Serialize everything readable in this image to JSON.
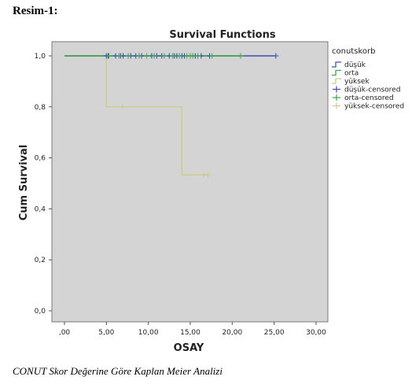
{
  "heading": "Resim-1:",
  "caption": "CONUT Skor Değerine Göre Kaplan Meier Analizi",
  "colors": {
    "plot_bg": "#d4d4d4",
    "dusuk": "#3c4fb4",
    "orta": "#3ea84c",
    "yuksek": "#cfcc8a"
  },
  "chart_data": {
    "type": "line",
    "title": "Survival Functions",
    "xlabel": "OSAY",
    "ylabel": "Cum Survival",
    "xlim": [
      0,
      30
    ],
    "ylim": [
      0,
      1
    ],
    "x_ticks": [
      0,
      5,
      10,
      15,
      20,
      25,
      30
    ],
    "x_tick_labels": [
      ",00",
      "5,00",
      "10,00",
      "15,00",
      "20,00",
      "25,00",
      "30,00"
    ],
    "y_ticks": [
      0,
      0.2,
      0.4,
      0.6,
      0.8,
      1.0
    ],
    "y_tick_labels": [
      "0,0",
      "0,2",
      "0,4",
      "0,6",
      "0,8",
      "1,0"
    ],
    "grid": false,
    "legend_title": "conutskorb",
    "legend_position": "right",
    "legend": [
      "düşük",
      "orta",
      "yüksek",
      "düşük-censored",
      "orta-censored",
      "yüksek-censored"
    ],
    "series": [
      {
        "name": "düşük",
        "color": "#3c4fb4",
        "steps": [
          [
            0,
            1.0
          ],
          [
            25.2,
            1.0
          ]
        ],
        "censored": [
          [
            5.0,
            1.0
          ],
          [
            5.2,
            1.0
          ],
          [
            6.1,
            1.0
          ],
          [
            6.7,
            1.0
          ],
          [
            7.0,
            1.0
          ],
          [
            7.9,
            1.0
          ],
          [
            8.5,
            1.0
          ],
          [
            9.2,
            1.0
          ],
          [
            10.4,
            1.0
          ],
          [
            11.0,
            1.0
          ],
          [
            11.6,
            1.0
          ],
          [
            12.5,
            1.0
          ],
          [
            13.1,
            1.0
          ],
          [
            13.4,
            1.0
          ],
          [
            14.0,
            1.0
          ],
          [
            14.3,
            1.0
          ],
          [
            15.6,
            1.0
          ],
          [
            16.3,
            1.0
          ],
          [
            17.3,
            1.0
          ],
          [
            25.2,
            1.0
          ]
        ]
      },
      {
        "name": "orta",
        "color": "#3ea84c",
        "steps": [
          [
            0,
            1.0
          ],
          [
            21.0,
            1.0
          ]
        ],
        "censored": [
          [
            5.3,
            1.0
          ],
          [
            6.5,
            1.0
          ],
          [
            7.6,
            1.0
          ],
          [
            8.9,
            1.0
          ],
          [
            9.8,
            1.0
          ],
          [
            10.7,
            1.0
          ],
          [
            11.9,
            1.0
          ],
          [
            12.9,
            1.0
          ],
          [
            13.7,
            1.0
          ],
          [
            14.6,
            1.0
          ],
          [
            15.0,
            1.0
          ],
          [
            15.3,
            1.0
          ],
          [
            15.9,
            1.0
          ],
          [
            17.6,
            1.0
          ],
          [
            21.0,
            1.0
          ]
        ]
      },
      {
        "name": "yüksek",
        "color": "#cfcc8a",
        "steps": [
          [
            0,
            1.0
          ],
          [
            5.0,
            1.0
          ],
          [
            5.0,
            0.8
          ],
          [
            14.0,
            0.8
          ],
          [
            14.0,
            0.533
          ],
          [
            17.1,
            0.533
          ]
        ],
        "censored": [
          [
            6.9,
            0.8
          ],
          [
            16.6,
            0.533
          ],
          [
            17.1,
            0.533
          ]
        ]
      }
    ]
  }
}
